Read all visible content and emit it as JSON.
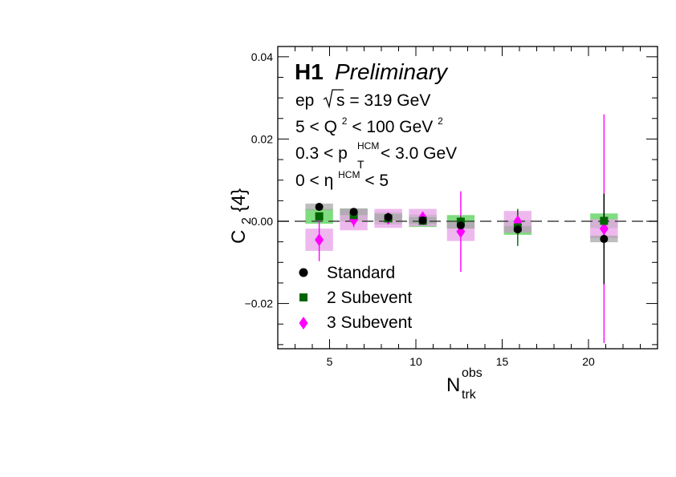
{
  "chart_data": {
    "type": "scatter",
    "xlabel_main": "N",
    "xlabel_sub": "trk",
    "xlabel_sup": "obs",
    "ylabel_main": "C",
    "ylabel_sub": "2",
    "ylabel_rest": "{4}",
    "xlim": [
      2,
      24
    ],
    "ylim": [
      -0.031,
      0.0425
    ],
    "xticks": [
      5,
      10,
      15,
      20
    ],
    "xtick_labels": [
      "5",
      "10",
      "15",
      "20"
    ],
    "yticks": [
      -0.02,
      0.0,
      0.02,
      0.04
    ],
    "ytick_labels": [
      "−0.02",
      "0.00",
      "0.02",
      "0.04"
    ],
    "reference_line": 0,
    "annotations": {
      "experiment": "H1",
      "status": "Preliminary",
      "line1_a": "ep",
      "line1_b": "s = 319 GeV",
      "line2_a": "5 < Q",
      "line2_sup": "2",
      "line2_b": " < 100 GeV",
      "line2_sup2": "2",
      "line3_a": "0.3 < p",
      "line3_sub": "T",
      "line3_sup": "HCM",
      "line3_b": " < 3.0 GeV",
      "line4_a": "0 < η",
      "line4_sup": "HCM",
      "line4_b": " < 5"
    },
    "series": [
      {
        "name": "Standard",
        "color": "#000000",
        "marker": "circle",
        "box_color": "#a8a8a8",
        "x": [
          4.4,
          6.4,
          8.4,
          10.4,
          12.6,
          15.9,
          20.9
        ],
        "y": [
          0.0035,
          0.0023,
          0.001,
          0.0002,
          -0.001,
          -0.002,
          -0.0043
        ],
        "stat_err": [
          0.0002,
          0.0002,
          0.0002,
          0.0003,
          0.0005,
          0.0008,
          0.011
        ],
        "syst_err": [
          0.0008,
          0.0008,
          0.0008,
          0.0008,
          0.0008,
          0.0008,
          0.0008
        ]
      },
      {
        "name": "2 Subevent",
        "color": "#006400",
        "marker": "square",
        "box_color": "#5fd35f",
        "x": [
          4.4,
          6.4,
          8.4,
          10.4,
          12.6,
          15.9,
          20.9
        ],
        "y": [
          0.0012,
          0.0015,
          0.0007,
          0.0001,
          -0.0001,
          -0.0015,
          0.0001
        ],
        "stat_err": [
          0.0004,
          0.0006,
          0.0006,
          0.0007,
          0.0012,
          0.0045,
          0.0065
        ],
        "syst_err": [
          0.0018,
          0.0016,
          0.0015,
          0.0015,
          0.0016,
          0.0018,
          0.0018
        ]
      },
      {
        "name": "3 Subevent",
        "color": "#ff00ff",
        "marker": "diamond",
        "box_color": "#eaa6ea",
        "x": [
          4.4,
          6.4,
          8.4,
          10.4,
          12.6,
          15.9,
          20.9
        ],
        "y": [
          -0.0045,
          0.0004,
          0.0007,
          0.0009,
          -0.0025,
          -0.0001,
          -0.0018
        ],
        "stat_err": [
          0.0052,
          0.0018,
          0.0012,
          0.0012,
          0.0098,
          0.0028,
          0.0278
        ],
        "syst_err": [
          0.0027,
          0.0026,
          0.0023,
          0.0021,
          0.0023,
          0.0026,
          0.0023
        ]
      }
    ]
  }
}
